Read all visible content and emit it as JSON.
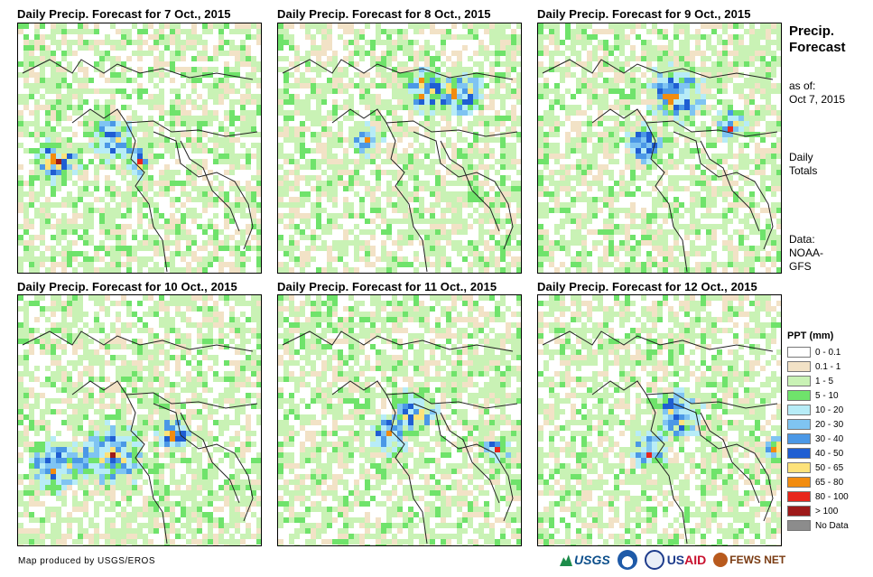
{
  "panels": [
    {
      "title": "Daily Precip. Forecast for 7 Oct., 2015"
    },
    {
      "title": "Daily Precip. Forecast for 8 Oct., 2015"
    },
    {
      "title": "Daily Precip. Forecast for 9 Oct., 2015"
    },
    {
      "title": "Daily Precip. Forecast for 10 Oct., 2015"
    },
    {
      "title": "Daily Precip. Forecast for 11 Oct., 2015"
    },
    {
      "title": "Daily Precip. Forecast for 12 Oct., 2015"
    }
  ],
  "side": {
    "title_line1": "Precip.",
    "title_line2": "Forecast",
    "asof_line1": "as of:",
    "asof_line2": "Oct 7, 2015",
    "daily_line1": "Daily",
    "daily_line2": "Totals",
    "data_line1": "Data:",
    "data_line2": "NOAA-",
    "data_line3": "GFS"
  },
  "legend": {
    "title": "PPT (mm)",
    "items": [
      {
        "label": "0 - 0.1",
        "color": "#ffffff"
      },
      {
        "label": "0.1 - 1",
        "color": "#f2e2c6"
      },
      {
        "label": "1 - 5",
        "color": "#c9f2b5"
      },
      {
        "label": "5 - 10",
        "color": "#6fe36b"
      },
      {
        "label": "10 - 20",
        "color": "#b7ecf7"
      },
      {
        "label": "20 - 30",
        "color": "#7fc4f2"
      },
      {
        "label": "30 - 40",
        "color": "#4b98e6"
      },
      {
        "label": "40 - 50",
        "color": "#1f5ed2"
      },
      {
        "label": "50 - 65",
        "color": "#fde27a"
      },
      {
        "label": "65 - 80",
        "color": "#f28c0f"
      },
      {
        "label": "80 - 100",
        "color": "#e8261c"
      },
      {
        "label": "> 100",
        "color": "#9e1a1a"
      },
      {
        "label": "No Data",
        "color": "#8c8c8c"
      }
    ]
  },
  "credit": "Map produced by USGS/EROS",
  "logos": {
    "usgs": "USGS",
    "usaid_a": "US",
    "usaid_b": "AID",
    "fews": "FEWS NET"
  }
}
